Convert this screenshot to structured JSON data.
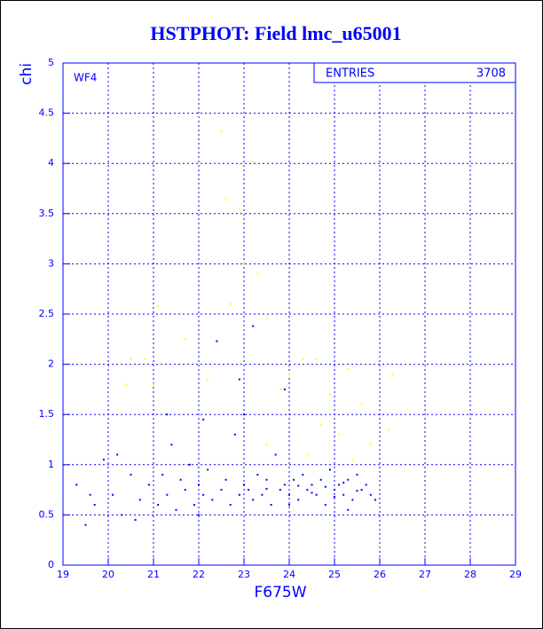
{
  "chart_data": {
    "type": "scatter",
    "title": "HSTPHOT: Field lmc_u65001",
    "panel_label": "WF4",
    "stats": {
      "label": "ENTRIES",
      "value": 3708
    },
    "x_label": "F675W",
    "y_label": "chi",
    "xlim": [
      19,
      29
    ],
    "ylim": [
      0,
      5
    ],
    "xticks": [
      19,
      20,
      21,
      22,
      23,
      24,
      25,
      26,
      27,
      28,
      29
    ],
    "yticks": [
      0,
      0.5,
      1,
      1.5,
      2,
      2.5,
      3,
      3.5,
      4,
      4.5,
      5
    ],
    "grid": true,
    "series": [
      {
        "color": "#0000ff",
        "x": [
          19.3,
          19.5,
          19.7,
          19.9,
          20.1,
          20.3,
          20.5,
          20.7,
          20.9,
          20.2,
          19.6,
          20.6,
          21.1,
          21.2,
          21.3,
          21.4,
          21.5,
          21.6,
          21.7,
          21.8,
          21.9,
          22.0,
          22.1,
          22.2,
          22.3,
          22.4,
          22.5,
          22.6,
          22.7,
          22.8,
          22.9,
          23.0,
          23.1,
          23.2,
          23.3,
          23.4,
          23.5,
          23.6,
          23.7,
          23.8,
          23.9,
          24.0,
          24.1,
          24.2,
          24.3,
          24.4,
          24.5,
          24.6,
          24.7,
          24.8,
          24.9,
          25.0,
          25.1,
          25.2,
          25.3,
          25.4,
          25.5,
          25.6,
          25.7,
          25.8,
          25.9,
          21.3,
          22.1,
          23.0,
          23.2,
          22.9,
          23.9,
          24.5,
          24.8,
          25.2,
          25.5,
          23.5,
          24.2,
          25.0,
          24.0,
          25.3,
          22.0
        ],
        "values": [
          0.8,
          0.4,
          0.6,
          1.05,
          0.7,
          0.5,
          0.9,
          0.65,
          0.8,
          1.1,
          0.7,
          0.45,
          0.6,
          0.9,
          0.7,
          1.2,
          0.55,
          0.85,
          0.75,
          1.0,
          0.6,
          0.8,
          0.7,
          0.95,
          0.65,
          2.23,
          0.75,
          0.85,
          0.6,
          1.3,
          0.7,
          0.8,
          0.75,
          0.65,
          0.9,
          0.7,
          0.85,
          0.6,
          1.1,
          0.75,
          0.8,
          0.7,
          0.85,
          0.65,
          0.9,
          0.75,
          0.8,
          0.7,
          0.85,
          0.6,
          0.95,
          0.75,
          0.8,
          0.7,
          0.85,
          0.65,
          0.9,
          0.75,
          0.8,
          0.7,
          0.65,
          1.5,
          1.45,
          1.5,
          2.38,
          1.85,
          1.75,
          0.72,
          0.78,
          0.82,
          0.74,
          0.76,
          0.79,
          0.68,
          0.6,
          0.55,
          0.5
        ]
      },
      {
        "color": "#ffff00",
        "x": [
          22.5,
          23.2,
          22.6,
          22.9,
          23.0,
          22.7,
          23.5,
          21.1,
          21.7,
          20.5,
          20.8,
          24.3,
          24.6,
          25.3,
          26.3,
          24.0,
          23.8,
          22.2,
          20.4,
          21.0,
          24.9,
          25.6,
          24.7,
          25.1,
          26.2,
          25.8,
          23.5,
          24.4,
          25.4,
          23.3
        ],
        "values": [
          4.32,
          4.02,
          3.65,
          3.55,
          3.0,
          2.6,
          2.45,
          2.58,
          2.25,
          2.05,
          2.05,
          2.05,
          2.05,
          1.95,
          1.9,
          1.9,
          1.75,
          1.85,
          1.8,
          1.8,
          1.7,
          1.6,
          1.4,
          1.3,
          1.35,
          1.2,
          1.2,
          1.1,
          1.05,
          2.9
        ]
      }
    ]
  }
}
